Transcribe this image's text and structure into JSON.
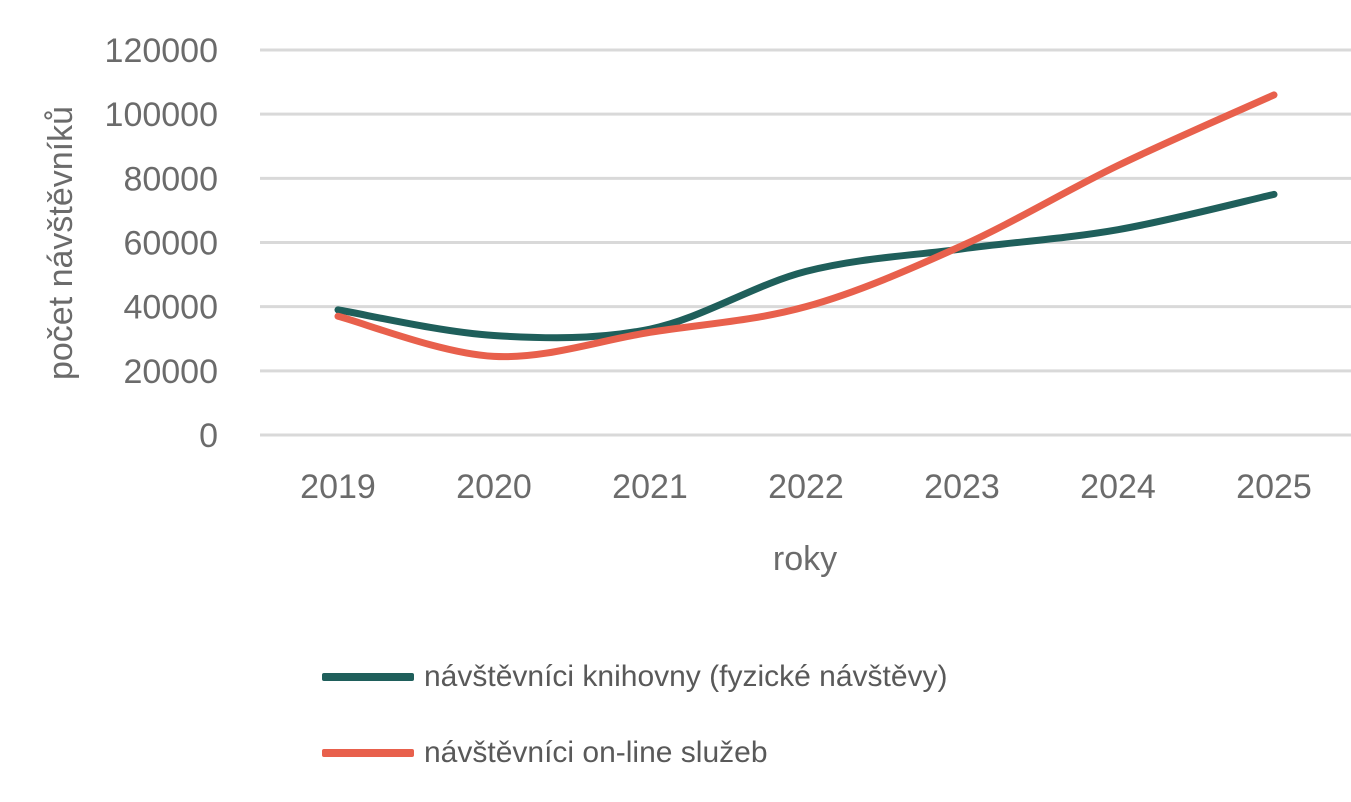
{
  "chart_data": {
    "type": "line",
    "title": "",
    "xlabel": "roky",
    "ylabel": "počet návštěvníků",
    "categories": [
      "2019",
      "2020",
      "2021",
      "2022",
      "2023",
      "2024",
      "2025"
    ],
    "ylim": [
      0,
      120000
    ],
    "yticks": [
      0,
      20000,
      40000,
      60000,
      80000,
      100000,
      120000
    ],
    "grid": true,
    "legend_position": "bottom",
    "series": [
      {
        "name": "návštěvníci knihovny (fyzické návštěvy)",
        "color": "#1f5f5b",
        "values": [
          39000,
          31000,
          33000,
          51000,
          58000,
          64000,
          75000
        ]
      },
      {
        "name": "návštěvníci on-line služeb",
        "color": "#e8604c",
        "values": [
          37000,
          24500,
          32000,
          40000,
          59000,
          84000,
          106000
        ]
      }
    ]
  }
}
